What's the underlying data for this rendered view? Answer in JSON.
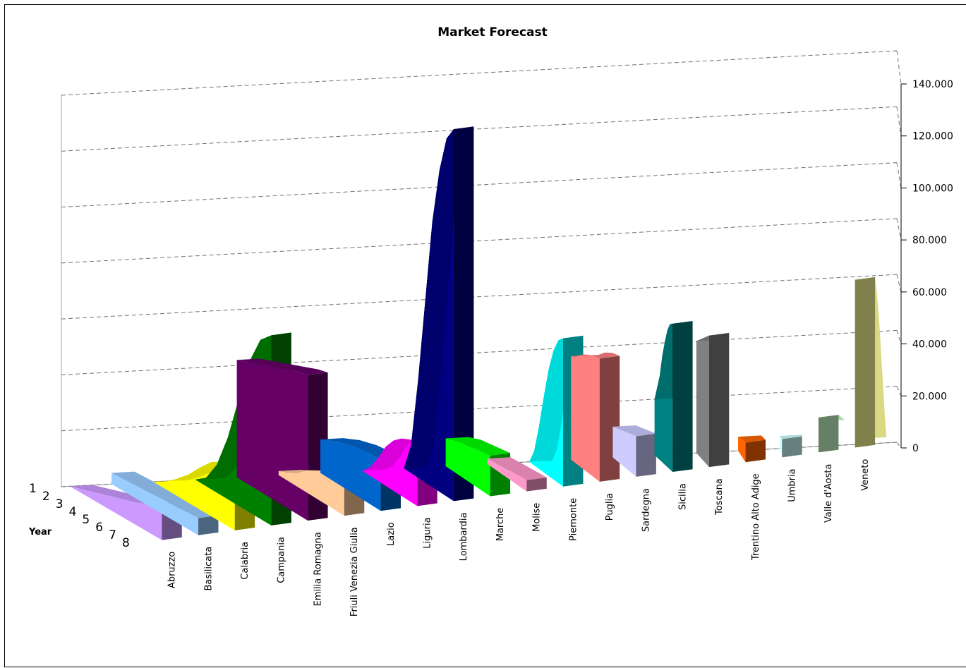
{
  "chart_data": {
    "type": "area",
    "variant": "3d-series-ribbons",
    "title": "Market Forecast",
    "xlabel": "",
    "zlabel": "Year",
    "ylabel": "",
    "ylim": [
      0,
      140000
    ],
    "yticks": [
      "0",
      "20.000",
      "40.000",
      "60.000",
      "80.000",
      "100.000",
      "120.000",
      "140.000"
    ],
    "ytick_values": [
      0,
      20000,
      40000,
      60000,
      80000,
      100000,
      120000,
      140000
    ],
    "years": [
      "1",
      "2",
      "3",
      "4",
      "5",
      "6",
      "7",
      "8"
    ],
    "grid": true,
    "legend": "none",
    "series": [
      {
        "name": "Abruzzo",
        "color": "#cc99ff",
        "values": [
          0,
          1600,
          3200,
          4800,
          6400,
          8000,
          10000,
          12000
        ]
      },
      {
        "name": "Basilicata",
        "color": "#99ccff",
        "values": [
          4000,
          4300,
          4600,
          4900,
          5200,
          5500,
          5800,
          6100
        ]
      },
      {
        "name": "Calabria",
        "color": "#ffff00",
        "values": [
          0,
          2500,
          6000,
          10000,
          15000,
          19500,
          22000,
          24000
        ]
      },
      {
        "name": "Campania",
        "color": "#008000",
        "values": [
          0,
          3000,
          10000,
          22000,
          38000,
          54000,
          64000,
          68000
        ]
      },
      {
        "name": "Emilia Romagna",
        "color": "#660066",
        "values": [
          42000,
          43500,
          45000,
          46500,
          48000,
          49500,
          51000,
          52000
        ]
      },
      {
        "name": "Friuli Venezia Giulia",
        "color": "#ffcc99",
        "values": [
          1500,
          3000,
          5000,
          8000,
          10000,
          12000,
          13000,
          14000
        ]
      },
      {
        "name": "Lazio",
        "color": "#0066cc",
        "values": [
          12000,
          13500,
          15000,
          16000,
          17000,
          17500,
          18000,
          18500
        ]
      },
      {
        "name": "Liguria",
        "color": "#ff00ff",
        "values": [
          0,
          3000,
          8000,
          14000,
          18000,
          20500,
          22000,
          23000
        ]
      },
      {
        "name": "Lombardia",
        "color": "#000080",
        "values": [
          0,
          10000,
          35000,
          65000,
          95000,
          115000,
          128000,
          133000
        ]
      },
      {
        "name": "Marche",
        "color": "#00ff00",
        "values": [
          10000,
          11000,
          12000,
          12500,
          13000,
          13500,
          14000,
          14500
        ]
      },
      {
        "name": "Molise",
        "color": "#ff99cc",
        "values": [
          2000,
          2300,
          2600,
          2900,
          3200,
          3500,
          3800,
          4000
        ]
      },
      {
        "name": "Piemonte",
        "color": "#00ffff",
        "values": [
          0,
          5000,
          15000,
          27000,
          38000,
          46000,
          51000,
          53000
        ]
      },
      {
        "name": "Puglia",
        "color": "#ff8080",
        "values": [
          37000,
          38000,
          39500,
          41000,
          42000,
          43000,
          43500,
          44000
        ]
      },
      {
        "name": "Sardegna",
        "color": "#ccccff",
        "values": [
          11000,
          11500,
          12000,
          12500,
          13000,
          13500,
          14000,
          14500
        ]
      },
      {
        "name": "Sicilia",
        "color": "#008080",
        "values": [
          20000,
          25000,
          30000,
          38000,
          44000,
          49000,
          52000,
          53000
        ]
      },
      {
        "name": "Toscana",
        "color": "#808080",
        "values": [
          40000,
          41000,
          42000,
          43000,
          44000,
          45000,
          46000,
          47000
        ]
      },
      {
        "name": "Trentino Alto Adige",
        "color": "#ff6600",
        "values": [
          5000,
          5300,
          5600,
          5900,
          6200,
          6500,
          6800,
          7000
        ]
      },
      {
        "name": "Umbria",
        "color": "#ccffff",
        "values": [
          4500,
          4800,
          5100,
          5400,
          5700,
          6000,
          6300,
          6500
        ]
      },
      {
        "name": "Valle d'Aosta",
        "color": "#ccffcc",
        "values": [
          9000,
          9500,
          10000,
          10500,
          11000,
          11500,
          12000,
          12500
        ]
      },
      {
        "name": "Veneto",
        "color": "#ffff99",
        "values": [
          2000,
          10000,
          20000,
          30000,
          40000,
          48000,
          55000,
          60000
        ]
      }
    ]
  }
}
